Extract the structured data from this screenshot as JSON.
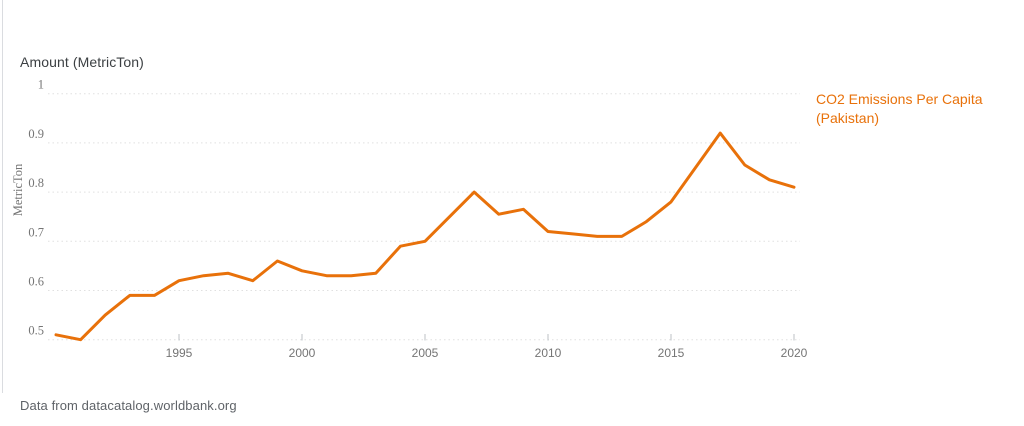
{
  "page": {
    "title": "Amount (MetricTon)",
    "footer": "Data from datacatalog.worldbank.org"
  },
  "legend": {
    "label": "CO2 Emissions Per Capita (Pakistan)",
    "line1": "CO2 Emissions Per Capita",
    "line2": "(Pakistan)"
  },
  "colors": {
    "series": "#e8710a",
    "grid": "#e0e0e0",
    "tick": "#bdc1c6",
    "tick_text": "#757575",
    "title_text": "#3c4043",
    "footer_text": "#5f6368"
  },
  "chart_data": {
    "type": "line",
    "title": "Amount (MetricTon)",
    "xlabel": "",
    "ylabel": "MetricTon",
    "xlim": [
      1989.7,
      2020.3
    ],
    "ylim": [
      0.5,
      1.0
    ],
    "grid": "horizontal-dotted",
    "legend_position": "right",
    "xticks": [
      1995,
      2000,
      2005,
      2010,
      2015,
      2020
    ],
    "xtick_labels": [
      "1995",
      "2000",
      "2005",
      "2010",
      "2015",
      "2020"
    ],
    "yticks": [
      0.5,
      0.6,
      0.7,
      0.8,
      0.9,
      1
    ],
    "ytick_labels": [
      "0.5",
      "0.6",
      "0.7",
      "0.8",
      "0.9",
      "1"
    ],
    "series": [
      {
        "name": "CO2 Emissions Per Capita (Pakistan)",
        "color": "#e8710a",
        "x": [
          1990,
          1991,
          1992,
          1993,
          1994,
          1995,
          1996,
          1997,
          1998,
          1999,
          2000,
          2001,
          2002,
          2003,
          2004,
          2005,
          2006,
          2007,
          2008,
          2009,
          2010,
          2011,
          2012,
          2013,
          2014,
          2015,
          2016,
          2017,
          2018,
          2019,
          2020
        ],
        "values": [
          0.51,
          0.5,
          0.55,
          0.59,
          0.59,
          0.62,
          0.63,
          0.635,
          0.62,
          0.66,
          0.64,
          0.63,
          0.63,
          0.635,
          0.69,
          0.7,
          0.75,
          0.8,
          0.755,
          0.765,
          0.72,
          0.715,
          0.71,
          0.71,
          0.74,
          0.78,
          0.85,
          0.92,
          0.855,
          0.825,
          0.81
        ]
      }
    ]
  }
}
